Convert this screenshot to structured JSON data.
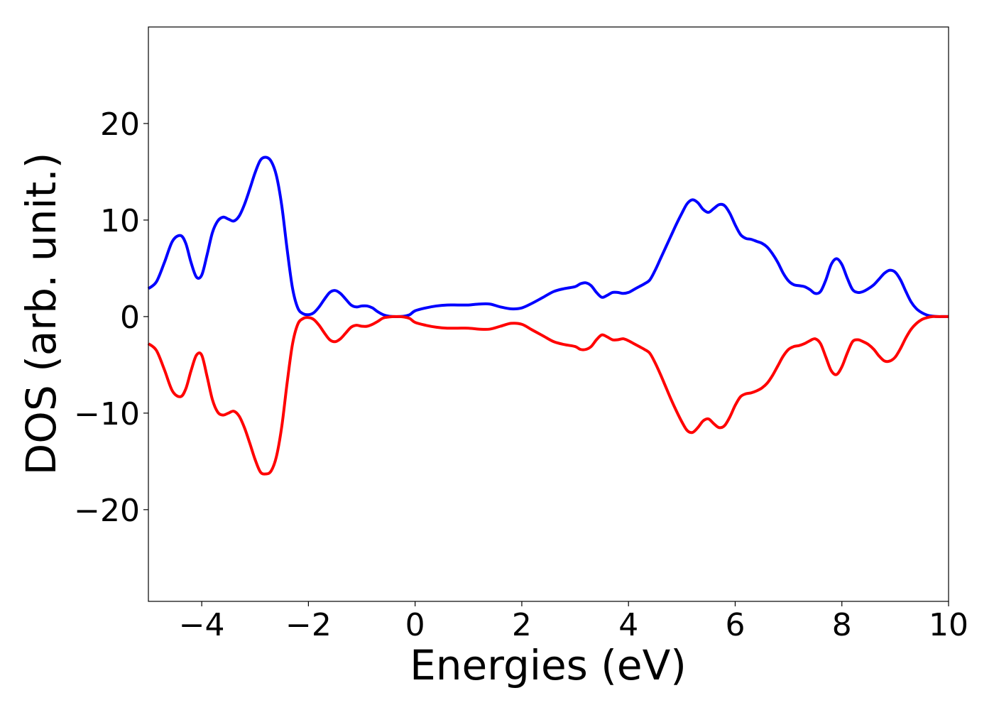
{
  "chart_data": {
    "type": "line",
    "title": "",
    "xlabel": "Energies (eV)",
    "ylabel": "DOS (arb. unit.)",
    "xlim": [
      -5,
      10
    ],
    "ylim": [
      -29.5,
      30
    ],
    "xticks": [
      -4,
      -2,
      0,
      2,
      4,
      6,
      8,
      10
    ],
    "yticks": [
      -20,
      -10,
      0,
      10,
      20
    ],
    "xtick_labels": [
      "−4",
      "−2",
      "0",
      "2",
      "4",
      "6",
      "8",
      "10"
    ],
    "ytick_labels": [
      "−20",
      "−10",
      "0",
      "10",
      "20"
    ],
    "grid": false,
    "legend": false,
    "series": [
      {
        "color": "#0000ff",
        "x": [
          -5.0,
          -4.85,
          -4.7,
          -4.55,
          -4.4,
          -4.3,
          -4.2,
          -4.1,
          -4.0,
          -3.9,
          -3.8,
          -3.7,
          -3.6,
          -3.5,
          -3.4,
          -3.3,
          -3.2,
          -3.1,
          -3.0,
          -2.9,
          -2.8,
          -2.7,
          -2.6,
          -2.5,
          -2.4,
          -2.3,
          -2.2,
          -2.1,
          -2.0,
          -1.9,
          -1.8,
          -1.7,
          -1.6,
          -1.5,
          -1.4,
          -1.3,
          -1.2,
          -1.1,
          -1.0,
          -0.9,
          -0.8,
          -0.7,
          -0.6,
          -0.5,
          -0.4,
          -0.3,
          -0.2,
          -0.1,
          0.0,
          0.2,
          0.4,
          0.6,
          0.8,
          1.0,
          1.2,
          1.4,
          1.6,
          1.8,
          2.0,
          2.2,
          2.4,
          2.6,
          2.8,
          3.0,
          3.1,
          3.2,
          3.3,
          3.4,
          3.5,
          3.6,
          3.7,
          3.8,
          3.9,
          4.0,
          4.1,
          4.2,
          4.3,
          4.4,
          4.5,
          4.6,
          4.7,
          4.8,
          4.9,
          5.0,
          5.1,
          5.2,
          5.3,
          5.4,
          5.5,
          5.6,
          5.7,
          5.8,
          5.9,
          6.0,
          6.1,
          6.2,
          6.3,
          6.4,
          6.5,
          6.6,
          6.7,
          6.8,
          6.9,
          7.0,
          7.1,
          7.2,
          7.3,
          7.4,
          7.5,
          7.6,
          7.7,
          7.8,
          7.9,
          8.0,
          8.1,
          8.2,
          8.3,
          8.4,
          8.5,
          8.6,
          8.7,
          8.8,
          8.9,
          9.0,
          9.1,
          9.2,
          9.3,
          9.4,
          9.5,
          9.6,
          9.7,
          9.8,
          9.9,
          10.0
        ],
        "values": [
          2.9,
          3.6,
          5.6,
          7.8,
          8.4,
          7.6,
          5.6,
          4.1,
          4.3,
          6.4,
          8.7,
          9.9,
          10.3,
          10.1,
          9.9,
          10.4,
          11.6,
          13.2,
          14.9,
          16.2,
          16.5,
          16.1,
          14.6,
          11.5,
          7.0,
          3.0,
          0.9,
          0.3,
          0.2,
          0.4,
          1.0,
          1.8,
          2.5,
          2.7,
          2.4,
          1.8,
          1.2,
          1.0,
          1.1,
          1.1,
          0.9,
          0.5,
          0.2,
          0.05,
          0.0,
          0.0,
          0.05,
          0.2,
          0.6,
          0.9,
          1.1,
          1.2,
          1.2,
          1.2,
          1.3,
          1.3,
          1.0,
          0.8,
          0.9,
          1.4,
          2.0,
          2.6,
          2.9,
          3.1,
          3.4,
          3.5,
          3.2,
          2.5,
          2.0,
          2.2,
          2.5,
          2.5,
          2.4,
          2.5,
          2.8,
          3.1,
          3.4,
          3.8,
          4.8,
          6.0,
          7.2,
          8.4,
          9.6,
          10.7,
          11.7,
          12.1,
          11.8,
          11.1,
          10.8,
          11.2,
          11.6,
          11.5,
          10.7,
          9.5,
          8.5,
          8.1,
          8.0,
          7.8,
          7.6,
          7.2,
          6.5,
          5.6,
          4.5,
          3.7,
          3.3,
          3.2,
          3.1,
          2.8,
          2.4,
          2.6,
          3.8,
          5.4,
          6.0,
          5.4,
          4.0,
          2.8,
          2.5,
          2.6,
          2.9,
          3.3,
          3.9,
          4.5,
          4.8,
          4.6,
          3.8,
          2.6,
          1.5,
          0.8,
          0.4,
          0.15,
          0.05,
          0.0,
          0.0,
          0.0
        ]
      },
      {
        "color": "#ff0000",
        "x": [
          -5.0,
          -4.85,
          -4.7,
          -4.55,
          -4.4,
          -4.3,
          -4.2,
          -4.1,
          -4.0,
          -3.9,
          -3.8,
          -3.7,
          -3.6,
          -3.5,
          -3.4,
          -3.3,
          -3.2,
          -3.1,
          -3.0,
          -2.9,
          -2.8,
          -2.7,
          -2.6,
          -2.5,
          -2.4,
          -2.3,
          -2.2,
          -2.1,
          -2.0,
          -1.9,
          -1.8,
          -1.7,
          -1.6,
          -1.5,
          -1.4,
          -1.3,
          -1.2,
          -1.1,
          -1.0,
          -0.9,
          -0.8,
          -0.7,
          -0.6,
          -0.5,
          -0.4,
          -0.3,
          -0.2,
          -0.1,
          0.0,
          0.2,
          0.4,
          0.6,
          0.8,
          1.0,
          1.2,
          1.4,
          1.6,
          1.8,
          2.0,
          2.2,
          2.4,
          2.6,
          2.8,
          3.0,
          3.1,
          3.2,
          3.3,
          3.4,
          3.5,
          3.6,
          3.7,
          3.8,
          3.9,
          4.0,
          4.1,
          4.2,
          4.3,
          4.4,
          4.5,
          4.6,
          4.7,
          4.8,
          4.9,
          5.0,
          5.1,
          5.2,
          5.3,
          5.4,
          5.5,
          5.6,
          5.7,
          5.8,
          5.9,
          6.0,
          6.1,
          6.2,
          6.3,
          6.4,
          6.5,
          6.6,
          6.7,
          6.8,
          6.9,
          7.0,
          7.1,
          7.2,
          7.3,
          7.4,
          7.5,
          7.6,
          7.7,
          7.8,
          7.9,
          8.0,
          8.1,
          8.2,
          8.3,
          8.4,
          8.5,
          8.6,
          8.7,
          8.8,
          8.9,
          9.0,
          9.1,
          9.2,
          9.3,
          9.4,
          9.5,
          9.6,
          9.7,
          9.8,
          9.9,
          10.0
        ],
        "values": [
          -2.8,
          -3.5,
          -5.5,
          -7.7,
          -8.3,
          -7.5,
          -5.6,
          -4.0,
          -4.0,
          -6.2,
          -8.6,
          -9.9,
          -10.2,
          -10.0,
          -9.8,
          -10.3,
          -11.5,
          -13.1,
          -14.8,
          -16.1,
          -16.3,
          -16.0,
          -14.5,
          -11.4,
          -6.9,
          -2.9,
          -0.8,
          -0.2,
          -0.1,
          -0.3,
          -0.9,
          -1.7,
          -2.4,
          -2.6,
          -2.3,
          -1.7,
          -1.1,
          -0.9,
          -1.0,
          -1.0,
          -0.8,
          -0.5,
          -0.15,
          -0.05,
          0.0,
          0.0,
          -0.05,
          -0.2,
          -0.6,
          -0.9,
          -1.1,
          -1.2,
          -1.2,
          -1.2,
          -1.3,
          -1.3,
          -1.0,
          -0.7,
          -0.8,
          -1.4,
          -2.0,
          -2.6,
          -2.9,
          -3.1,
          -3.4,
          -3.4,
          -3.1,
          -2.4,
          -1.9,
          -2.1,
          -2.4,
          -2.4,
          -2.3,
          -2.5,
          -2.8,
          -3.1,
          -3.4,
          -3.8,
          -4.8,
          -6.0,
          -7.3,
          -8.6,
          -9.8,
          -10.9,
          -11.8,
          -12.0,
          -11.5,
          -10.8,
          -10.6,
          -11.1,
          -11.5,
          -11.3,
          -10.4,
          -9.2,
          -8.3,
          -8.0,
          -7.9,
          -7.7,
          -7.4,
          -6.9,
          -6.1,
          -5.1,
          -4.1,
          -3.4,
          -3.1,
          -3.0,
          -2.8,
          -2.5,
          -2.3,
          -2.8,
          -4.2,
          -5.6,
          -6.0,
          -5.2,
          -3.8,
          -2.6,
          -2.4,
          -2.6,
          -2.9,
          -3.4,
          -4.1,
          -4.6,
          -4.6,
          -4.2,
          -3.3,
          -2.2,
          -1.3,
          -0.7,
          -0.3,
          -0.1,
          0.0,
          0.0,
          0.0,
          0.0
        ]
      }
    ]
  }
}
